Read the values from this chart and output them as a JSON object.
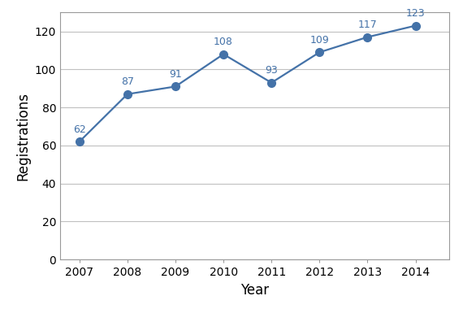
{
  "years": [
    2007,
    2008,
    2009,
    2010,
    2011,
    2012,
    2013,
    2014
  ],
  "values": [
    62,
    87,
    91,
    108,
    93,
    109,
    117,
    123
  ],
  "line_color": "#4472a8",
  "marker_color": "#4472a8",
  "xlabel": "Year",
  "ylabel": "Registrations",
  "ylim": [
    0,
    130
  ],
  "yticks": [
    0,
    20,
    40,
    60,
    80,
    100,
    120
  ],
  "xlim_left": 2006.6,
  "xlim_right": 2014.7,
  "grid_color": "#c0c0c0",
  "bg_color": "#ffffff",
  "border_color": "#999999",
  "label_color": "#4472a8",
  "label_fontsize": 9,
  "axis_label_fontsize": 12,
  "tick_fontsize": 10
}
